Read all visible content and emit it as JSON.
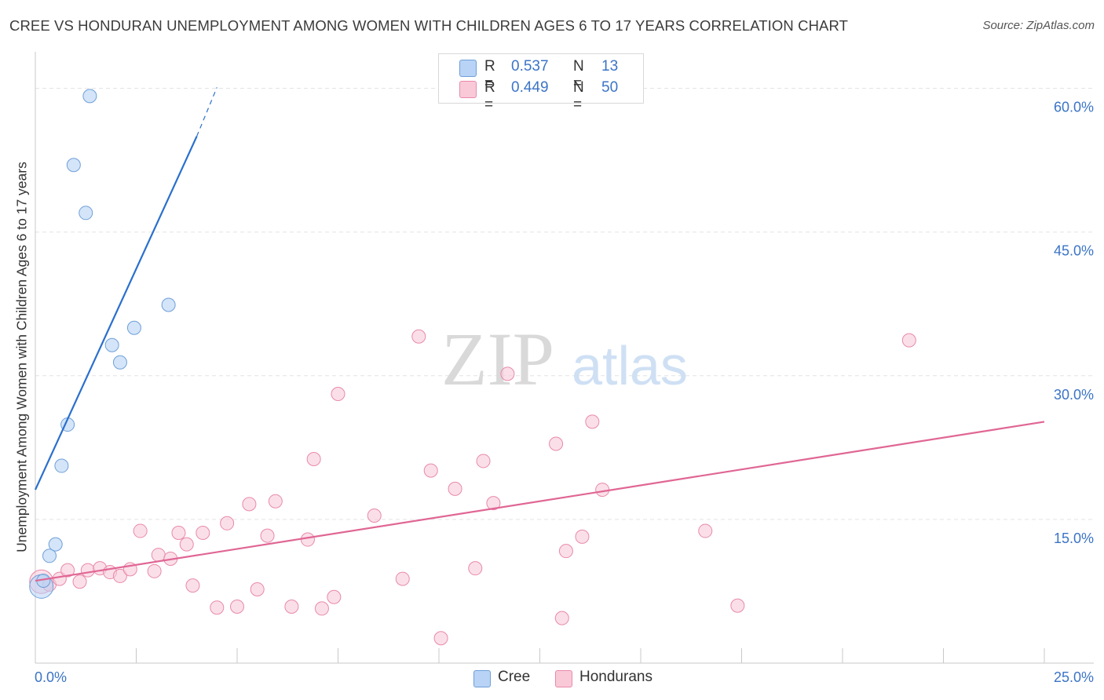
{
  "header": {
    "title": "CREE VS HONDURAN UNEMPLOYMENT AMONG WOMEN WITH CHILDREN AGES 6 TO 17 YEARS CORRELATION CHART",
    "source": "Source: ZipAtlas.com"
  },
  "legend": {
    "cree": {
      "r_label": "R =",
      "r_value": "0.537",
      "n_label": "N =",
      "n_value": "13"
    },
    "hondurans": {
      "r_label": "R =",
      "r_value": "0.449",
      "n_label": "N =",
      "n_value": "50"
    }
  },
  "bottom_legend": {
    "cree": "Cree",
    "hondurans": "Hondurans"
  },
  "watermark": {
    "zip": "ZIP",
    "atlas": "atlas"
  },
  "colors": {
    "cree_fill": "#b8d3f5",
    "cree_stroke": "#6f9fd8",
    "cree_line": "#2a6fcd",
    "hond_fill": "#f9c9d8",
    "hond_stroke": "#e88aaa",
    "hond_line": "#e06694",
    "axis_label": "#3b74c6",
    "grid": "#e3e3e3"
  },
  "chart_data": {
    "type": "scatter",
    "title": "CREE VS HONDURAN UNEMPLOYMENT AMONG WOMEN WITH CHILDREN AGES 6 TO 17 YEARS CORRELATION CHART",
    "xlabel": "",
    "ylabel": "Unemployment Among Women with Children Ages 6 to 17 years",
    "xlim": [
      0,
      25
    ],
    "ylim": [
      0,
      63
    ],
    "x_tick_labels": [
      "0.0%",
      "25.0%"
    ],
    "y_ticks": [
      15,
      30,
      45,
      60
    ],
    "y_tick_labels": [
      "15.0%",
      "30.0%",
      "45.0%",
      "60.0%"
    ],
    "grid": true,
    "series": [
      {
        "name": "Cree",
        "points": [
          [
            0.15,
            8.0
          ],
          [
            0.2,
            8.6
          ],
          [
            0.35,
            11.2
          ],
          [
            0.5,
            12.4
          ],
          [
            0.65,
            20.6
          ],
          [
            0.8,
            24.9
          ],
          [
            0.95,
            52.0
          ],
          [
            1.25,
            47.0
          ],
          [
            1.35,
            59.2
          ],
          [
            1.9,
            33.2
          ],
          [
            2.1,
            31.4
          ],
          [
            2.45,
            35.0
          ],
          [
            3.3,
            37.4
          ]
        ],
        "trendline": {
          "x0": 0.0,
          "y0": 18.1,
          "x1": 4.0,
          "y1": 55.0,
          "dash_to_x": 4.5,
          "dash_to_y": 60.1
        }
      },
      {
        "name": "Hondurans",
        "points": [
          [
            0.15,
            8.5
          ],
          [
            0.35,
            8.2
          ],
          [
            0.6,
            8.8
          ],
          [
            0.8,
            9.7
          ],
          [
            1.1,
            8.5
          ],
          [
            1.3,
            9.7
          ],
          [
            1.6,
            9.9
          ],
          [
            1.85,
            9.5
          ],
          [
            2.1,
            9.1
          ],
          [
            2.35,
            9.8
          ],
          [
            2.6,
            13.8
          ],
          [
            2.95,
            9.6
          ],
          [
            3.05,
            11.3
          ],
          [
            3.35,
            10.9
          ],
          [
            3.55,
            13.6
          ],
          [
            3.75,
            12.4
          ],
          [
            3.9,
            8.1
          ],
          [
            4.15,
            13.6
          ],
          [
            4.5,
            5.8
          ],
          [
            4.75,
            14.6
          ],
          [
            5.0,
            5.9
          ],
          [
            5.3,
            16.6
          ],
          [
            5.5,
            7.7
          ],
          [
            5.75,
            13.3
          ],
          [
            5.95,
            16.9
          ],
          [
            6.35,
            5.9
          ],
          [
            6.75,
            12.9
          ],
          [
            6.9,
            21.3
          ],
          [
            7.1,
            5.7
          ],
          [
            7.4,
            6.9
          ],
          [
            7.5,
            28.1
          ],
          [
            8.4,
            15.4
          ],
          [
            9.1,
            8.8
          ],
          [
            9.5,
            34.1
          ],
          [
            9.8,
            20.1
          ],
          [
            10.05,
            2.6
          ],
          [
            10.4,
            18.2
          ],
          [
            10.9,
            9.9
          ],
          [
            11.1,
            21.1
          ],
          [
            11.35,
            16.7
          ],
          [
            11.7,
            30.2
          ],
          [
            12.9,
            22.9
          ],
          [
            13.05,
            4.7
          ],
          [
            13.15,
            11.7
          ],
          [
            13.55,
            13.2
          ],
          [
            13.8,
            25.2
          ],
          [
            14.05,
            18.1
          ],
          [
            16.6,
            13.8
          ],
          [
            17.4,
            6.0
          ],
          [
            21.65,
            33.7
          ]
        ],
        "trendline": {
          "x0": 0.0,
          "y0": 8.6,
          "x1": 25.0,
          "y1": 25.2
        }
      }
    ],
    "legend_position": "top-center"
  }
}
